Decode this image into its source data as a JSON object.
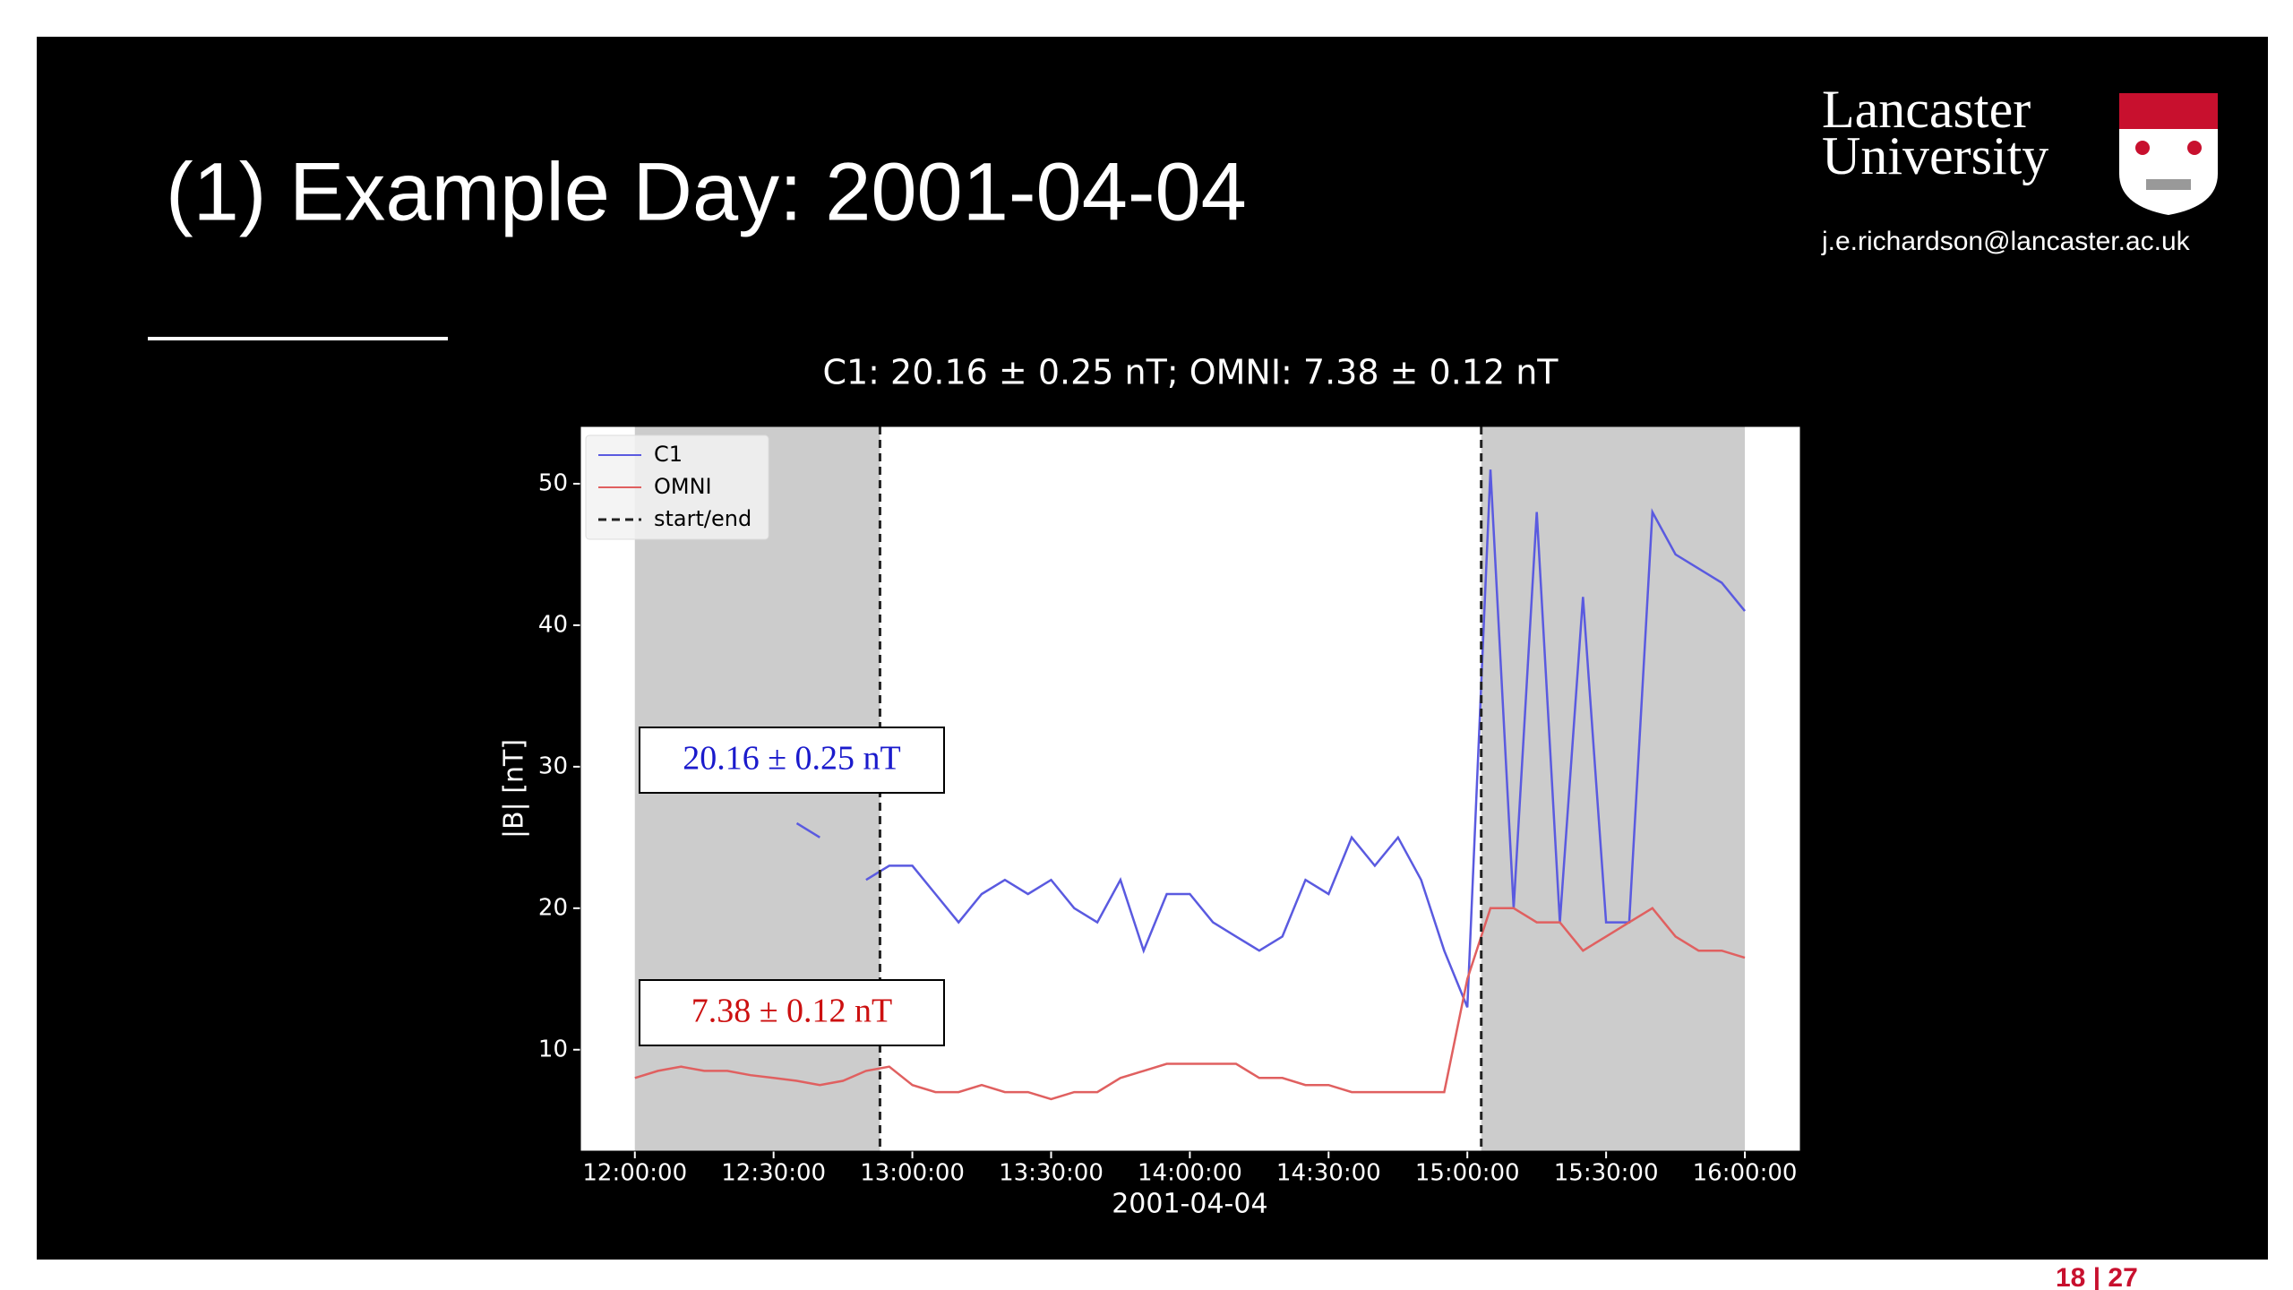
{
  "slide": {
    "title": "(1) Example Day: 2001-04-04",
    "logo_line1": "Lancaster",
    "logo_line2": "University",
    "email": "j.e.richardson@lancaster.ac.uk",
    "page_number": "18 | 27"
  },
  "chart_data": {
    "type": "line",
    "title": "C1: 20.16 ± 0.25 nT; OMNI: 7.38 ± 0.12 nT",
    "xlabel": "2001-04-04",
    "ylabel": "|B| [nT]",
    "x": [
      "12:00:00",
      "12:05:00",
      "12:10:00",
      "12:15:00",
      "12:20:00",
      "12:25:00",
      "12:30:00",
      "12:35:00",
      "12:40:00",
      "12:45:00",
      "12:50:00",
      "12:55:00",
      "13:00:00",
      "13:05:00",
      "13:10:00",
      "13:15:00",
      "13:20:00",
      "13:25:00",
      "13:30:00",
      "13:35:00",
      "13:40:00",
      "13:45:00",
      "13:50:00",
      "13:55:00",
      "14:00:00",
      "14:05:00",
      "14:10:00",
      "14:15:00",
      "14:20:00",
      "14:25:00",
      "14:30:00",
      "14:35:00",
      "14:40:00",
      "14:45:00",
      "14:50:00",
      "14:55:00",
      "15:00:00",
      "15:05:00",
      "15:10:00",
      "15:15:00",
      "15:20:00",
      "15:25:00",
      "15:30:00",
      "15:35:00",
      "15:40:00",
      "15:45:00",
      "15:50:00",
      "15:55:00",
      "16:00:00"
    ],
    "series": [
      {
        "name": "C1",
        "color": "#5a5ae0",
        "values": [
          null,
          null,
          null,
          null,
          null,
          null,
          null,
          26,
          25,
          null,
          22,
          23,
          23,
          21,
          19,
          21,
          22,
          21,
          22,
          20,
          19,
          22,
          17,
          21,
          21,
          19,
          18,
          17,
          18,
          22,
          21,
          25,
          23,
          25,
          22,
          17,
          13,
          51,
          20,
          48,
          19,
          42,
          19,
          19,
          48,
          45,
          44,
          43,
          41
        ]
      },
      {
        "name": "OMNI",
        "color": "#e06060",
        "values": [
          8,
          8.5,
          8.8,
          8.5,
          8.5,
          8.2,
          8,
          7.8,
          7.5,
          7.8,
          8.5,
          8.8,
          7.5,
          7,
          7,
          7.5,
          7,
          7,
          6.5,
          7,
          7,
          8,
          8.5,
          9,
          9,
          9,
          9,
          8,
          8,
          7.5,
          7.5,
          7,
          7,
          7,
          7,
          7,
          15,
          20,
          20,
          19,
          19,
          17,
          18,
          19,
          20,
          18,
          17,
          17,
          16.5
        ]
      }
    ],
    "vline_name": "start/end",
    "vlines": [
      "12:53:00",
      "15:03:00"
    ],
    "shaded": [
      [
        "12:00:00",
        "12:53:00"
      ],
      [
        "15:03:00",
        "16:00:00"
      ]
    ],
    "annotations": [
      {
        "text": "20.16 ± 0.25 nT",
        "color": "#1a1acc"
      },
      {
        "text": "7.38 ± 0.12 nT",
        "color": "#cc1010"
      }
    ],
    "xlim": [
      "11:48:14",
      "16:12:00"
    ],
    "ylim": [
      2.83,
      54.05
    ],
    "xticks": [
      "12:00:00",
      "12:30:00",
      "13:00:00",
      "13:30:00",
      "14:00:00",
      "14:30:00",
      "15:00:00",
      "15:30:00",
      "16:00:00"
    ],
    "yticks": [
      10,
      20,
      30,
      40,
      50
    ],
    "legend": "upper left",
    "grid": false
  }
}
